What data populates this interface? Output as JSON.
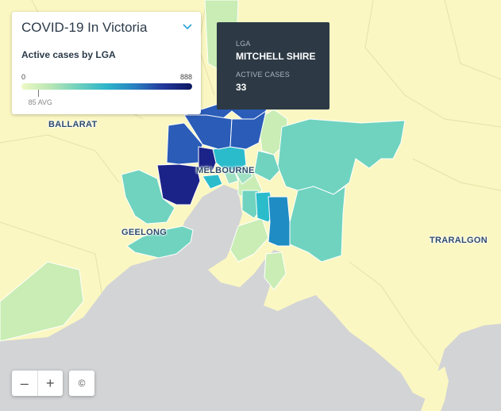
{
  "map": {
    "cities": [
      "BALLARAT",
      "MELBOURNE",
      "GEELONG",
      "TRARALGON"
    ],
    "colors": {
      "land": "#fbf7c2",
      "water": "#d3d4d6",
      "boundary": "#e7e0a8",
      "low": "#c9edb4",
      "mid": "#6fd3bf",
      "cyan": "#2bbccc",
      "blue": "#2a6fc2",
      "dark": "#1a2a8f"
    }
  },
  "legend": {
    "title": "COVID-19 In Victoria",
    "subtitle": "Active cases by LGA",
    "min": "0",
    "max": "888",
    "avg_label": "85 AVG",
    "min_value": 0,
    "max_value": 888,
    "avg_value": 85
  },
  "tooltip": {
    "lga_label": "LGA",
    "lga_value": "MITCHELL SHIRE",
    "cases_label": "ACTIVE CASES",
    "cases_value": "33"
  },
  "controls": {
    "zoom_out": "–",
    "zoom_in": "+",
    "attribution": "©"
  }
}
